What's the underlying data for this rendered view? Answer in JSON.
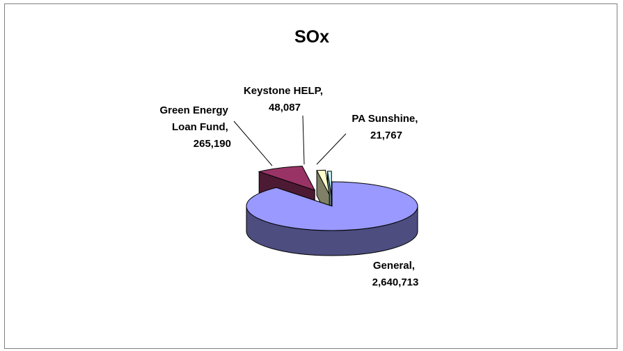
{
  "chart_data": {
    "type": "pie",
    "style": "3d-exploded",
    "title": "SOx",
    "legend": "none",
    "series": [
      {
        "name": "General",
        "value": 2640713,
        "value_label": "2,640,713",
        "color": "#9999ff",
        "side_color": "#4d4d80"
      },
      {
        "name": "Green Energy Loan Fund",
        "value": 265190,
        "value_label": "265,190",
        "color": "#993366",
        "side_color": "#4d1a33"
      },
      {
        "name": "Keystone HELP",
        "value": 48087,
        "value_label": "48,087",
        "color": "#ffffcc",
        "side_color": "#808066"
      },
      {
        "name": "PA Sunshine",
        "value": 21767,
        "value_label": "21,767",
        "color": "#ccffff",
        "side_color": "#668080"
      }
    ]
  }
}
